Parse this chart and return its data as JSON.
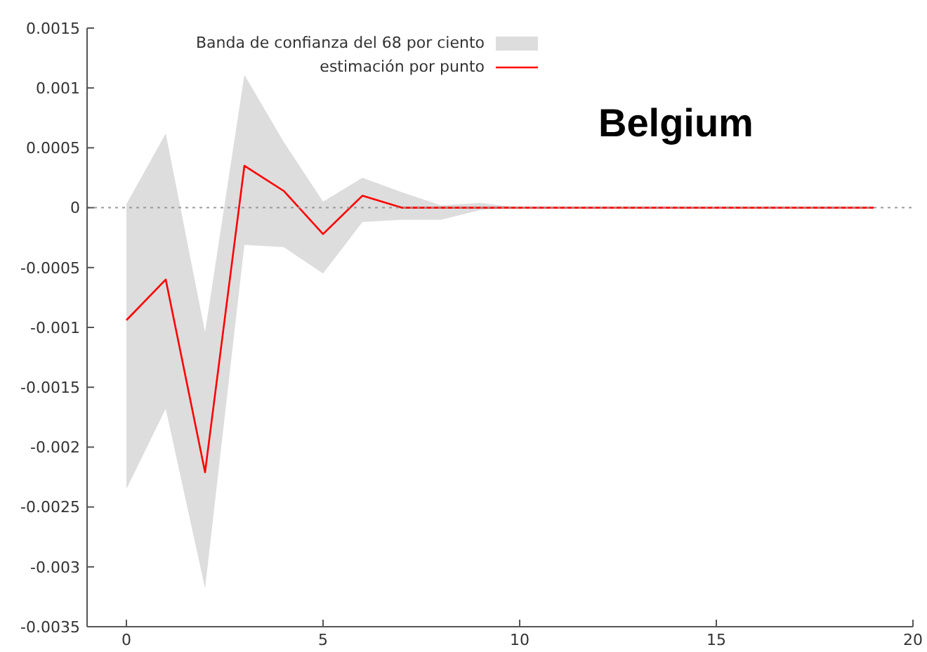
{
  "chart_data": {
    "type": "line",
    "annotations": [
      "Belgium",
      "Banda de confianza del 68 por ciento"
    ],
    "x": [
      0,
      1,
      2,
      3,
      4,
      5,
      6,
      7,
      8,
      9,
      10,
      11,
      12,
      13,
      14,
      15,
      16,
      17,
      18,
      19
    ],
    "series": [
      {
        "name": "estimación por punto",
        "color": "#ff0000",
        "values": [
          -0.00094,
          -0.0006,
          -0.00221,
          0.00035,
          0.00014,
          -0.00022,
          0.0001,
          0,
          0,
          0,
          0,
          0,
          0,
          0,
          0,
          0,
          0,
          0,
          0,
          0
        ],
        "lower": [
          -0.00235,
          -0.00168,
          -0.00318,
          -0.00031,
          -0.00033,
          -0.00055,
          -0.00012,
          -0.0001,
          -0.0001,
          -2e-05,
          0,
          0,
          0,
          0,
          0,
          0,
          0,
          0,
          0,
          0
        ],
        "upper": [
          3e-05,
          0.00062,
          -0.00104,
          0.00111,
          0.00055,
          5e-05,
          0.00025,
          0.00013,
          2e-05,
          4e-05,
          0,
          0,
          0,
          0,
          0,
          0,
          0,
          0,
          0,
          0
        ]
      }
    ],
    "xlim": [
      -1,
      20
    ],
    "xticks": [
      0,
      5,
      10,
      15,
      20
    ],
    "ylim": [
      -0.0035,
      0.0015
    ],
    "yticks": [
      -0.0035,
      -0.003,
      -0.0025,
      -0.002,
      -0.0015,
      -0.001,
      -0.0005,
      0,
      0.0005,
      0.001,
      0.0015
    ],
    "ref_lines": [
      {
        "axis": "y",
        "value": 0,
        "color": "#999999",
        "line_style": "dotted"
      }
    ],
    "grid": false,
    "legend": "top",
    "marker": "none"
  }
}
